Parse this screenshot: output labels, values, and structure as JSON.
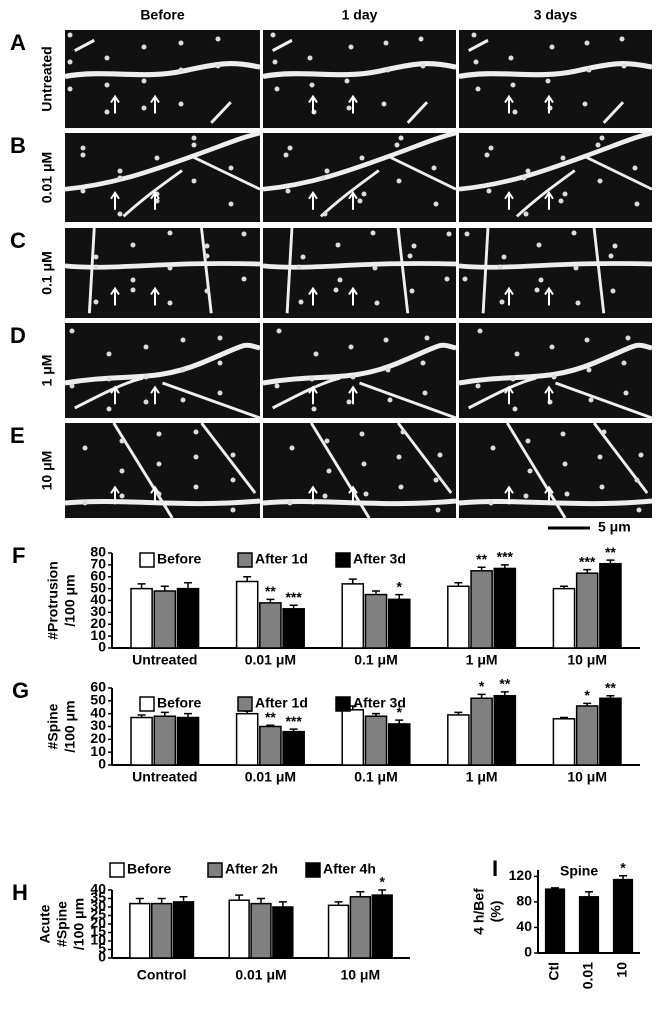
{
  "figure_letters": [
    "A",
    "B",
    "C",
    "D",
    "E"
  ],
  "image_panel": {
    "columns": [
      "Before",
      "1 day",
      "3 days"
    ],
    "rows": [
      "Untreated",
      "0.01 μM",
      "0.1 μM",
      "1 μM",
      "10 μM"
    ],
    "scale_bar": "5 μm"
  },
  "chart_data": [
    {
      "type": "bar",
      "letter": "F",
      "ylabel": [
        "#Protrusion",
        "/100 μm"
      ],
      "categories": [
        "Untreated",
        "0.01 μM",
        "0.1 μM",
        "1 μM",
        "10 μM"
      ],
      "ylim": [
        0,
        80
      ],
      "yticks": [
        0,
        10,
        20,
        30,
        40,
        50,
        60,
        70,
        80
      ],
      "series": [
        {
          "name": "Before",
          "color": "#ffffff",
          "values": [
            50,
            56,
            54,
            52,
            50
          ],
          "errors": [
            4,
            4,
            4,
            3,
            2
          ],
          "significance": [
            null,
            null,
            null,
            null,
            null
          ]
        },
        {
          "name": "After 1d",
          "color": "#808080",
          "values": [
            48,
            38,
            45,
            65,
            63
          ],
          "errors": [
            4,
            3,
            3,
            3,
            3
          ],
          "significance": [
            null,
            "**",
            null,
            "**",
            "***"
          ]
        },
        {
          "name": "After 3d",
          "color": "#000000",
          "values": [
            50,
            33,
            41,
            67,
            71
          ],
          "errors": [
            5,
            3,
            4,
            3,
            3
          ],
          "significance": [
            null,
            "***",
            "*",
            "***",
            "**"
          ]
        }
      ]
    },
    {
      "type": "bar",
      "letter": "G",
      "ylabel": [
        "#Spine",
        "/100 μm"
      ],
      "categories": [
        "Untreated",
        "0.01 μM",
        "0.1 μM",
        "1 μM",
        "10 μM"
      ],
      "ylim": [
        0,
        60
      ],
      "yticks": [
        0,
        10,
        20,
        30,
        40,
        50,
        60
      ],
      "series": [
        {
          "name": "Before",
          "color": "#ffffff",
          "values": [
            37,
            40,
            43,
            39,
            36
          ],
          "errors": [
            2,
            2,
            3,
            2,
            1
          ],
          "significance": [
            null,
            null,
            null,
            null,
            null
          ]
        },
        {
          "name": "After 1d",
          "color": "#808080",
          "values": [
            38,
            30,
            38,
            52,
            46
          ],
          "errors": [
            3,
            1,
            2,
            3,
            2
          ],
          "significance": [
            null,
            "**",
            null,
            "*",
            "*"
          ]
        },
        {
          "name": "After 3d",
          "color": "#000000",
          "values": [
            37,
            26,
            32,
            54,
            52
          ],
          "errors": [
            3,
            2,
            3,
            3,
            2
          ],
          "significance": [
            null,
            "***",
            "*",
            "**",
            "**"
          ]
        }
      ]
    },
    {
      "type": "bar",
      "letter": "H",
      "ylabel": [
        "Acute",
        "#Spine",
        "/100 μm"
      ],
      "categories": [
        "Control",
        "0.01 μM",
        "10 μM"
      ],
      "ylim": [
        0,
        40
      ],
      "yticks": [
        0,
        5,
        10,
        15,
        20,
        25,
        30,
        35,
        40
      ],
      "series": [
        {
          "name": "Before",
          "color": "#ffffff",
          "values": [
            32,
            34,
            31
          ],
          "errors": [
            3,
            3,
            2
          ],
          "significance": [
            null,
            null,
            null
          ]
        },
        {
          "name": "After 2h",
          "color": "#808080",
          "values": [
            32,
            32,
            36
          ],
          "errors": [
            3,
            3,
            3
          ],
          "significance": [
            null,
            null,
            null
          ]
        },
        {
          "name": "After 4h",
          "color": "#000000",
          "values": [
            33,
            30,
            37
          ],
          "errors": [
            3,
            3,
            3
          ],
          "significance": [
            null,
            null,
            "*"
          ]
        }
      ]
    },
    {
      "type": "bar",
      "letter": "I",
      "title": "Spine",
      "ylabel": [
        "4 h/Bef",
        "(%)"
      ],
      "categories": [
        "Ctl",
        "0.01",
        "10"
      ],
      "ylim": [
        0,
        130
      ],
      "yticks": [
        0,
        40,
        80,
        120
      ],
      "series": [
        {
          "color": "#000000",
          "values": [
            100,
            88,
            115
          ],
          "errors": [
            2,
            8,
            6
          ],
          "significance": [
            null,
            null,
            "*"
          ]
        }
      ]
    }
  ]
}
